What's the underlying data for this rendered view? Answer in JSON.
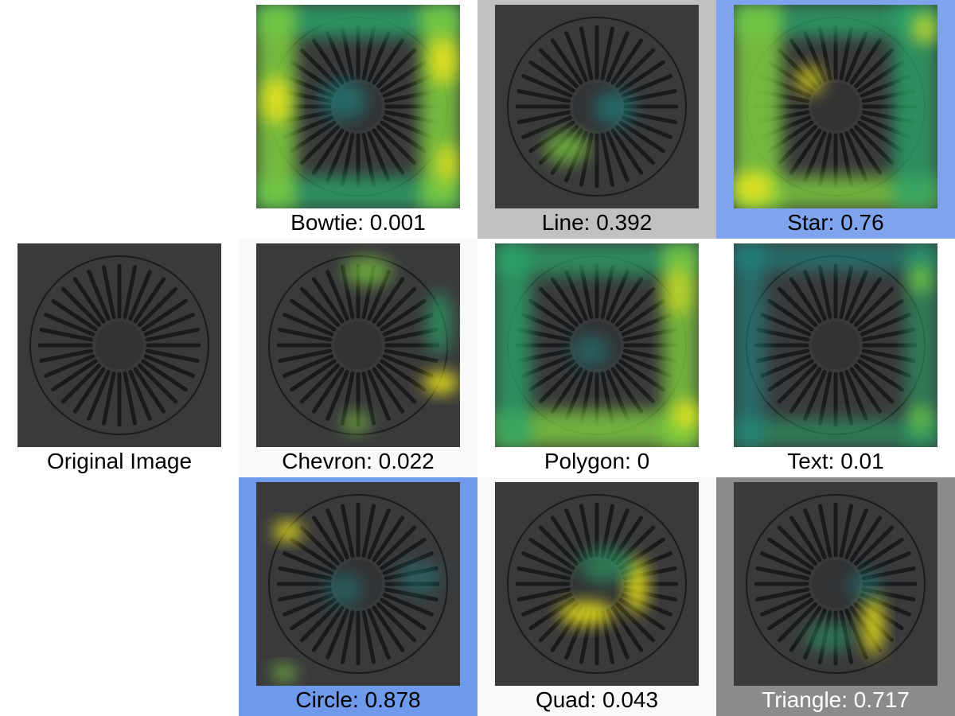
{
  "original": {
    "label": "Original Image"
  },
  "panels": [
    {
      "label": "Bowtie: 0.001",
      "bg": "#ffffff",
      "text_color": "#000000",
      "heat": "border"
    },
    {
      "label": "Line: 0.392",
      "bg": "#c0c0c0",
      "text_color": "#000000",
      "heat": "center-ring"
    },
    {
      "label": "Star: 0.76",
      "bg": "#7fa3ec",
      "text_color": "#000000",
      "heat": "border-strong"
    },
    {
      "label": "Chevron: 0.022",
      "bg": "#f9f9f9",
      "text_color": "#000000",
      "heat": "right-spot"
    },
    {
      "label": "Polygon: 0",
      "bg": "#ffffff",
      "text_color": "#000000",
      "heat": "frame"
    },
    {
      "label": "Text: 0.01",
      "bg": "#ffffff",
      "text_color": "#000000",
      "heat": "frame-soft"
    },
    {
      "label": "Circle: 0.878",
      "bg": "#6f99ea",
      "text_color": "#000000",
      "heat": "top-left-spot"
    },
    {
      "label": "Quad: 0.043",
      "bg": "#f9f9f9",
      "text_color": "#000000",
      "heat": "center-bracket"
    },
    {
      "label": "Triangle: 0.717",
      "bg": "#8b8b8b",
      "text_color": "#ffffff",
      "heat": "right-bar"
    }
  ]
}
